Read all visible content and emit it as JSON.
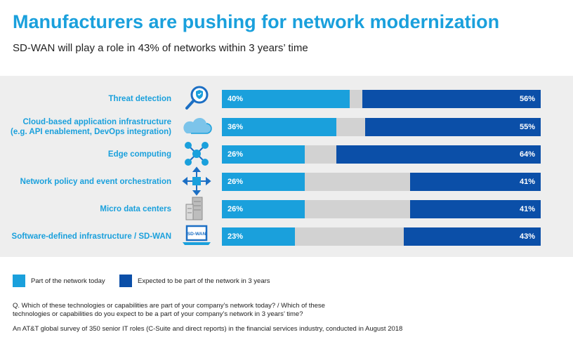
{
  "title": "Manufacturers are pushing for network modernization",
  "subtitle": "SD-WAN will play a role in 43% of networks within 3 years’ time",
  "colors": {
    "today": "#1aa0dc",
    "future": "#0b4fa8",
    "gap": "#d2d2d2",
    "panel": "#eeeeee"
  },
  "legend": {
    "today": "Part of the network today",
    "future": "Expected to be part of the network in 3 years"
  },
  "rows": [
    {
      "label_lines": [
        "Threat detection"
      ],
      "icon": "shield-magnifier-icon",
      "today": 40,
      "future": 56,
      "today_label": "40%",
      "future_label": "56%"
    },
    {
      "label_lines": [
        "Cloud-based application infrastructure",
        "(e.g. API enablement, DevOps integration)"
      ],
      "icon": "cloud-icon",
      "today": 36,
      "future": 55,
      "today_label": "36%",
      "future_label": "55%"
    },
    {
      "label_lines": [
        "Edge computing"
      ],
      "icon": "network-nodes-icon",
      "today": 26,
      "future": 64,
      "today_label": "26%",
      "future_label": "64%"
    },
    {
      "label_lines": [
        "Network policy and event orchestration"
      ],
      "icon": "orchestration-arrows-icon",
      "today": 26,
      "future": 41,
      "today_label": "26%",
      "future_label": "41%"
    },
    {
      "label_lines": [
        "Micro data centers"
      ],
      "icon": "server-rack-icon",
      "today": 26,
      "future": 41,
      "today_label": "26%",
      "future_label": "41%"
    },
    {
      "label_lines": [
        "Software-defined infrastructure / SD-WAN"
      ],
      "icon": "sdwan-laptop-icon",
      "today": 23,
      "future": 43,
      "today_label": "23%",
      "future_label": "43%"
    }
  ],
  "chart_data": {
    "type": "bar",
    "orientation": "horizontal",
    "title": "Manufacturers are pushing for network modernization",
    "subtitle": "SD-WAN will play a role in 43% of networks within 3 years’ time",
    "categories": [
      "Threat detection",
      "Cloud-based application infrastructure (e.g. API enablement, DevOps integration)",
      "Edge computing",
      "Network policy and event orchestration",
      "Micro data centers",
      "Software-defined infrastructure / SD-WAN"
    ],
    "series": [
      {
        "name": "Part of the network today",
        "values": [
          40,
          36,
          26,
          26,
          26,
          23
        ]
      },
      {
        "name": "Expected to be part of the network in 3 years",
        "values": [
          56,
          55,
          64,
          41,
          41,
          43
        ]
      }
    ],
    "unit": "%",
    "xlim": [
      0,
      100
    ],
    "legend_position": "bottom-left"
  },
  "footnotes": {
    "question_lines": [
      "Q. Which of these technologies or capabilities are part of your company’s network today? / Which of these",
      "technologies or capabilities do you expect to be a part of your company’s network in 3 years’ time?"
    ],
    "source": "An AT&T global survey of 350 senior IT roles (C-Suite and direct reports) in the financial services industry, conducted in August 2018"
  }
}
